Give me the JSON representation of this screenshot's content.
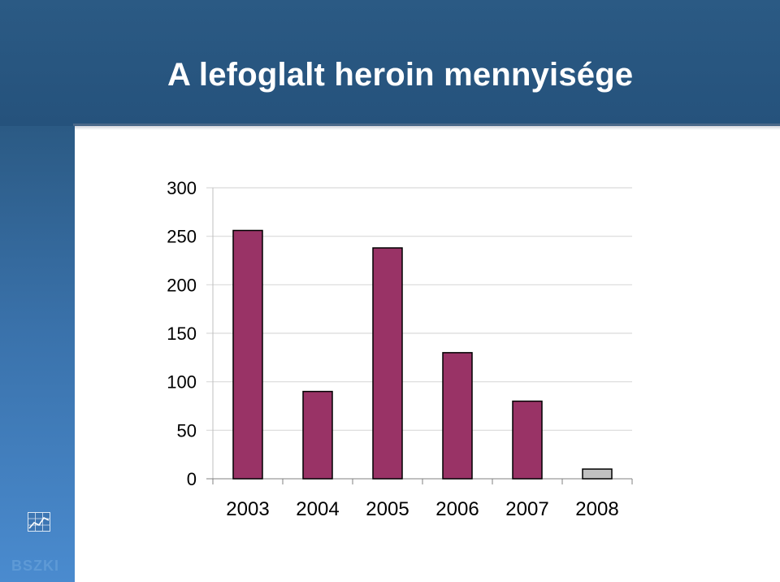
{
  "slide": {
    "title": "A lefoglalt heroin mennyisége",
    "logo_text": "BSZKI"
  },
  "colors": {
    "header": "#25527c",
    "sidebar_top": "#2b5a84",
    "sidebar_bottom": "#4a8bcf",
    "bar_main": "#993366",
    "bar_last": "#c0c0c0",
    "bar_outline": "#000000",
    "grid": "#d9d9d9"
  },
  "chart_data": {
    "type": "bar",
    "categories": [
      "2003",
      "2004",
      "2005",
      "2006",
      "2007",
      "2008"
    ],
    "values": [
      256,
      90,
      238,
      130,
      80,
      10
    ],
    "bar_colors": [
      "#993366",
      "#993366",
      "#993366",
      "#993366",
      "#993366",
      "#c0c0c0"
    ],
    "title": "",
    "xlabel": "",
    "ylabel": "",
    "ylim": [
      0,
      300
    ],
    "yticks": [
      0,
      50,
      100,
      150,
      200,
      250,
      300
    ],
    "grid": true,
    "legend": "none"
  }
}
